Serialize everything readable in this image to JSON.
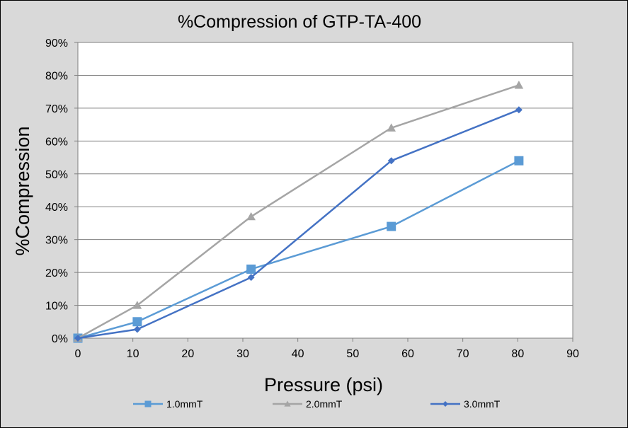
{
  "chart_data": {
    "type": "line",
    "title": "%Compression of GTP-TA-400",
    "xlabel": "Pressure (psi)",
    "ylabel": "%Compression",
    "xlim": [
      0,
      90
    ],
    "ylim": [
      0,
      0.9
    ],
    "x_ticks": [
      "0",
      "10",
      "20",
      "30",
      "40",
      "50",
      "60",
      "70",
      "80",
      "90"
    ],
    "y_ticks": [
      "0%",
      "10%",
      "20%",
      "30%",
      "40%",
      "50%",
      "60%",
      "70%",
      "80%",
      "90%"
    ],
    "grid": "horizontal",
    "legend_position": "bottom",
    "series": [
      {
        "name": "1.0mmT",
        "color": "#5b9bd5",
        "marker": "square",
        "x": [
          0,
          10.8,
          31.5,
          57,
          80.2
        ],
        "y": [
          0,
          0.05,
          0.21,
          0.34,
          0.54
        ]
      },
      {
        "name": "2.0mmT",
        "color": "#a5a5a5",
        "marker": "triangle",
        "x": [
          0,
          10.8,
          31.5,
          57,
          80.2
        ],
        "y": [
          0,
          0.1,
          0.37,
          0.64,
          0.77
        ]
      },
      {
        "name": "3.0mmT",
        "color": "#4472c4",
        "marker": "diamond",
        "x": [
          0,
          10.8,
          31.5,
          57,
          80.2
        ],
        "y": [
          0,
          0.027,
          0.185,
          0.54,
          0.695
        ]
      }
    ]
  }
}
